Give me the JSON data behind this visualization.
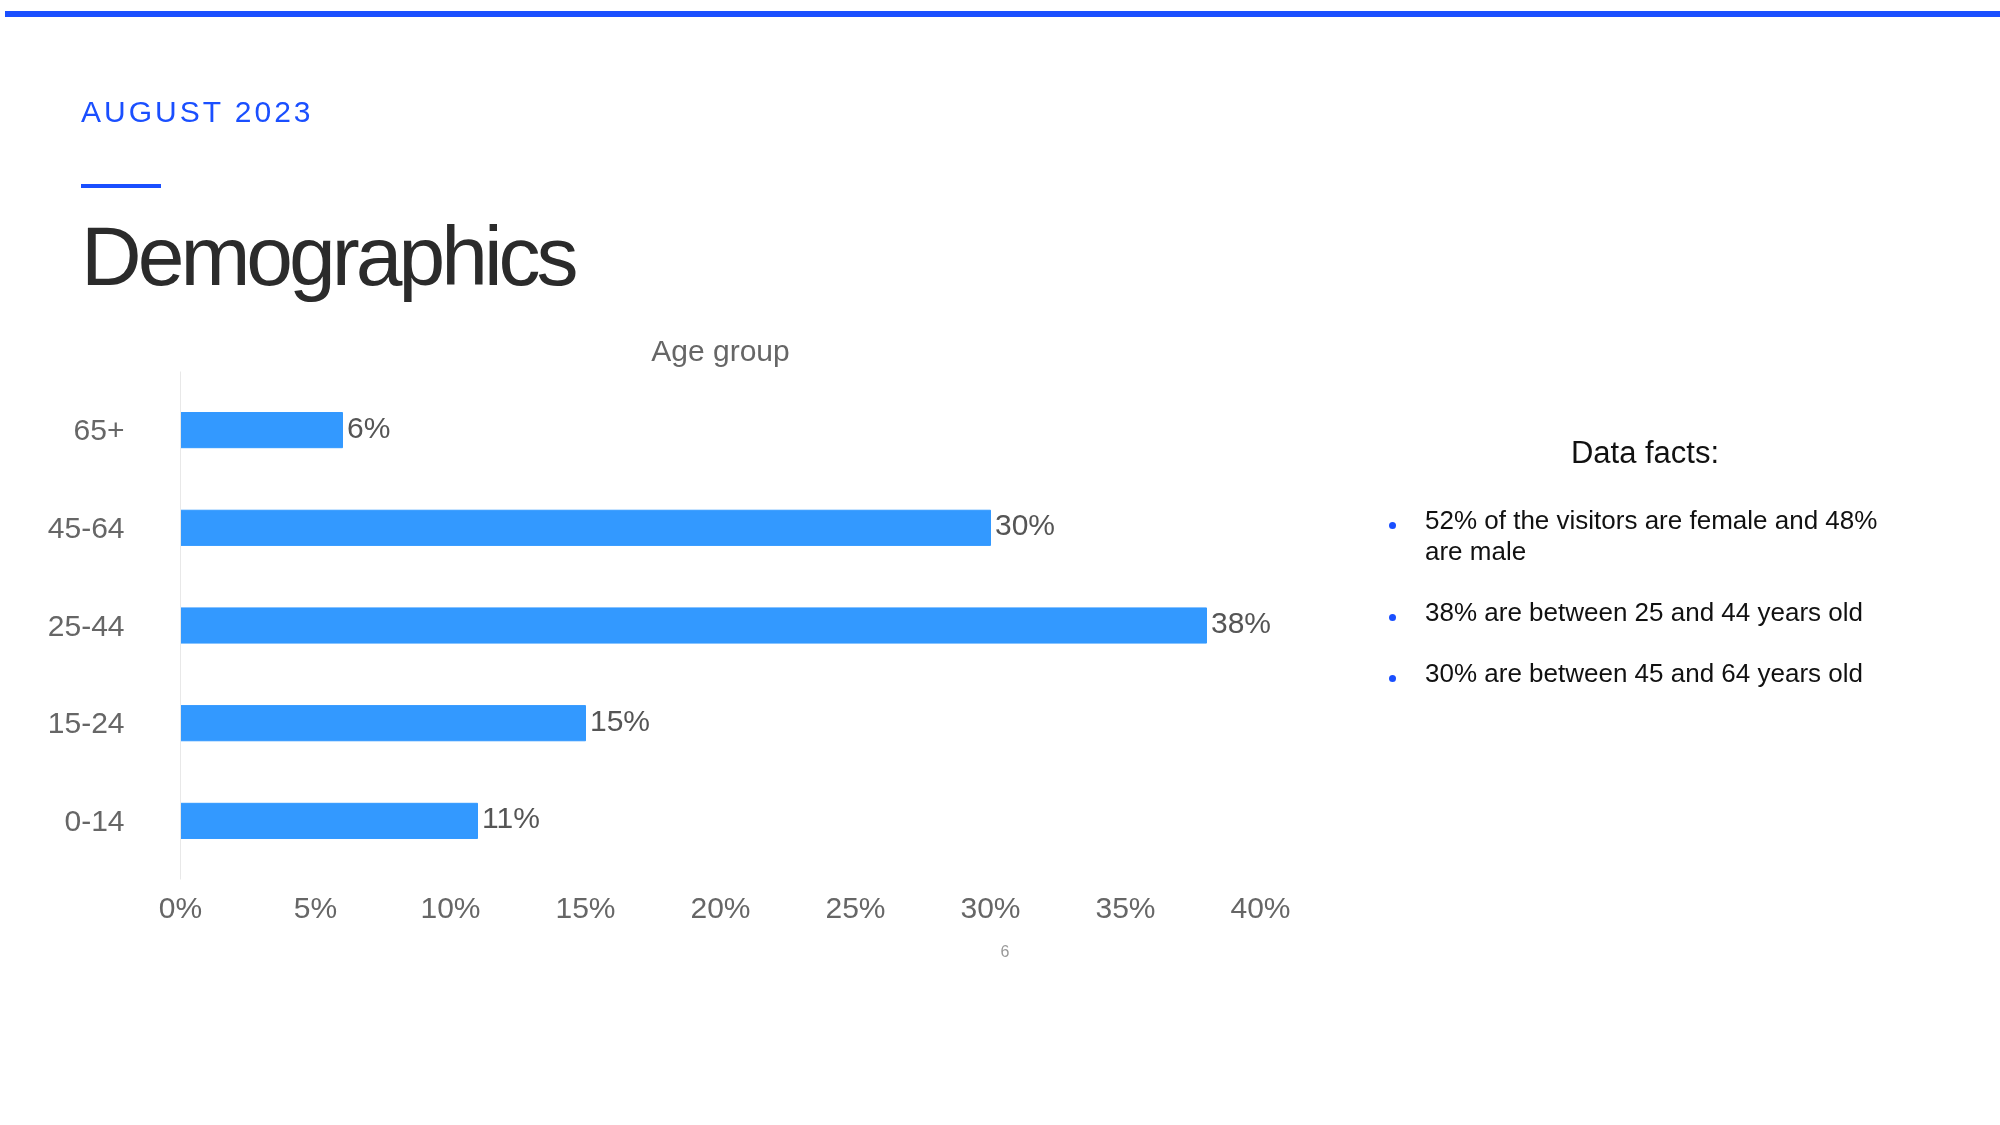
{
  "chart_data": {
    "type": "bar",
    "orientation": "horizontal",
    "title": "Demographics",
    "subtitle": "AUGUST 2023",
    "categories": [
      "65+",
      "45-64",
      "25-44",
      "15-24",
      "0-14"
    ],
    "values": [
      6,
      30,
      38,
      15,
      11
    ],
    "value_labels": [
      "6%",
      "30%",
      "38%",
      "15%",
      "11%"
    ],
    "color": "#3399ff",
    "xlim": [
      0,
      40
    ],
    "xticks": [
      {
        "value": 0,
        "label": "0%"
      },
      {
        "value": 5,
        "label": "5%"
      },
      {
        "value": 10,
        "label": "10%"
      },
      {
        "value": 15,
        "label": "15%"
      },
      {
        "value": 20,
        "label": "20%"
      },
      {
        "value": 25,
        "label": "25%"
      },
      {
        "value": 30,
        "label": "30%"
      },
      {
        "value": 35,
        "label": "35%"
      },
      {
        "value": 40,
        "label": "40%"
      }
    ],
    "grid": false,
    "annotations": [
      "Age group",
      "Data facts:",
      "52% of the visitors are female and 48% are male",
      "38% are between 25 and 44 years old",
      "30% are between 45 and 64 years old",
      "6"
    ]
  }
}
